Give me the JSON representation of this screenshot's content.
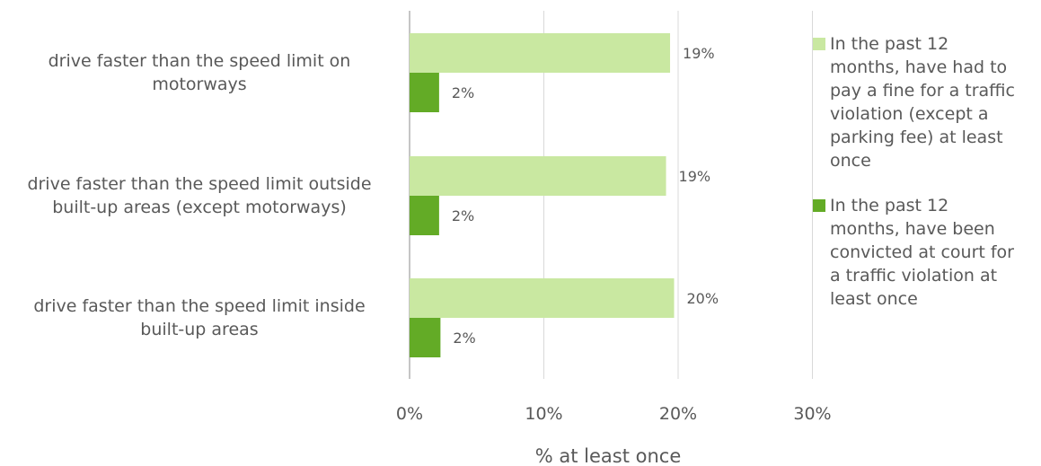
{
  "chart_data": {
    "type": "bar",
    "orientation": "horizontal",
    "categories": [
      "drive faster than the speed limit on motorways",
      "drive faster than the speed limit outside built-up areas (except motorways)",
      "drive faster than the speed limit inside built-up areas"
    ],
    "category_lines": [
      [
        "drive faster than the speed limit on",
        "motorways"
      ],
      [
        "drive faster than the speed limit outside",
        "built-up areas (except motorways)"
      ],
      [
        "drive faster than the speed limit inside",
        "built-up areas"
      ]
    ],
    "series": [
      {
        "name": "In the past 12 months, have had to pay a fine for a traffic violation (except a parking fee) at least once",
        "color": "#c9e8a1",
        "values": [
          19.4,
          19.1,
          19.7
        ],
        "labels": [
          "19%",
          "19%",
          "20%"
        ]
      },
      {
        "name": "In the past 12 months, have been convicted at court for a traffic violation at least once",
        "color": "#63ab26",
        "values": [
          2.2,
          2.2,
          2.3
        ],
        "labels": [
          "2%",
          "2%",
          "2%"
        ]
      }
    ],
    "xlabel": "% at least once",
    "xlim": [
      0,
      30
    ],
    "xticks": [
      "0%",
      "10%",
      "20%",
      "30%"
    ],
    "grid": true,
    "legend_position": "right"
  },
  "legend": {
    "items": [
      {
        "color": "#c9e8a1",
        "lines": [
          "In the past 12",
          "months, have had to",
          "pay a fine for a traffic",
          "violation (except a",
          "parking fee) at least",
          "once"
        ]
      },
      {
        "color": "#63ab26",
        "lines": [
          "In the past 12",
          "months, have been",
          "convicted at court for",
          "a traffic violation at",
          "least once"
        ]
      }
    ]
  }
}
